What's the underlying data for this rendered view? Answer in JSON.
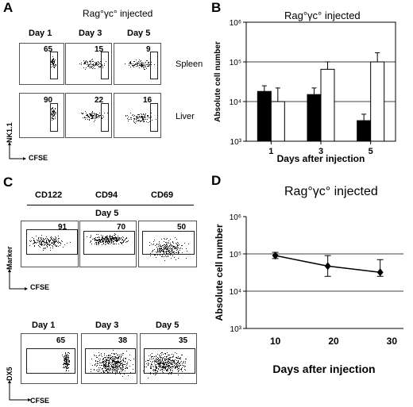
{
  "panels": {
    "A": {
      "letter": "A",
      "title": "Rag°γc° injected",
      "days": [
        "Day 1",
        "Day 3",
        "Day 5"
      ],
      "rows": [
        {
          "label": "Spleen",
          "values": [
            "65",
            "15",
            "9"
          ]
        },
        {
          "label": "Liver",
          "values": [
            "90",
            "22",
            "16"
          ]
        }
      ],
      "ylabel": "NK1.1",
      "xlabel": "CFSE"
    },
    "B": {
      "letter": "B"
    },
    "C": {
      "letter": "C",
      "markers": [
        "CD122",
        "CD94",
        "CD69"
      ],
      "day_label": "Day 5",
      "marker_values": [
        "91",
        "70",
        "50"
      ],
      "marker_ylabel": "Marker",
      "marker_xlabel": "CFSE",
      "days": [
        "Day 1",
        "Day 3",
        "Day 5"
      ],
      "dx5_values": [
        "65",
        "38",
        "35"
      ],
      "dx5_ylabel": "DX5",
      "dx5_xlabel": "CFSE"
    },
    "D": {
      "letter": "D"
    }
  },
  "chart_data": [
    {
      "panel": "B",
      "type": "bar",
      "title": "Rag°γc° injected",
      "xlabel": "Days after injection",
      "ylabel": "Absolute cell number",
      "categories": [
        "1",
        "3",
        "5"
      ],
      "yscale": "log",
      "ylim": [
        1000,
        1000000
      ],
      "yticks": [
        "10³",
        "10⁴",
        "10⁵",
        "10⁶"
      ],
      "gridlines": [
        10000,
        100000
      ],
      "series": [
        {
          "color": "#000000",
          "values": [
            18000,
            15000,
            3300
          ],
          "errors_up": [
            25000,
            22000,
            4800
          ]
        },
        {
          "color": "#ffffff",
          "values": [
            10000,
            65000,
            100000
          ],
          "errors_up": [
            22000,
            100000,
            170000
          ]
        }
      ]
    },
    {
      "panel": "D",
      "type": "line",
      "title": "Rag°γc° injected",
      "xlabel": "Days after injection",
      "ylabel": "Absolute cell number",
      "yscale": "log",
      "ylim": [
        1000,
        1000000
      ],
      "xlim": [
        5,
        32
      ],
      "xticks": [
        10,
        20,
        30
      ],
      "yticks": [
        "10³",
        "10⁴",
        "10⁵",
        "10⁶"
      ],
      "gridlines": [
        10000,
        100000
      ],
      "x": [
        10,
        19,
        28
      ],
      "y": [
        90000,
        47000,
        32000
      ],
      "errors_up": [
        110000,
        90000,
        70000
      ],
      "errors_down": [
        75000,
        25000,
        25000
      ]
    }
  ]
}
